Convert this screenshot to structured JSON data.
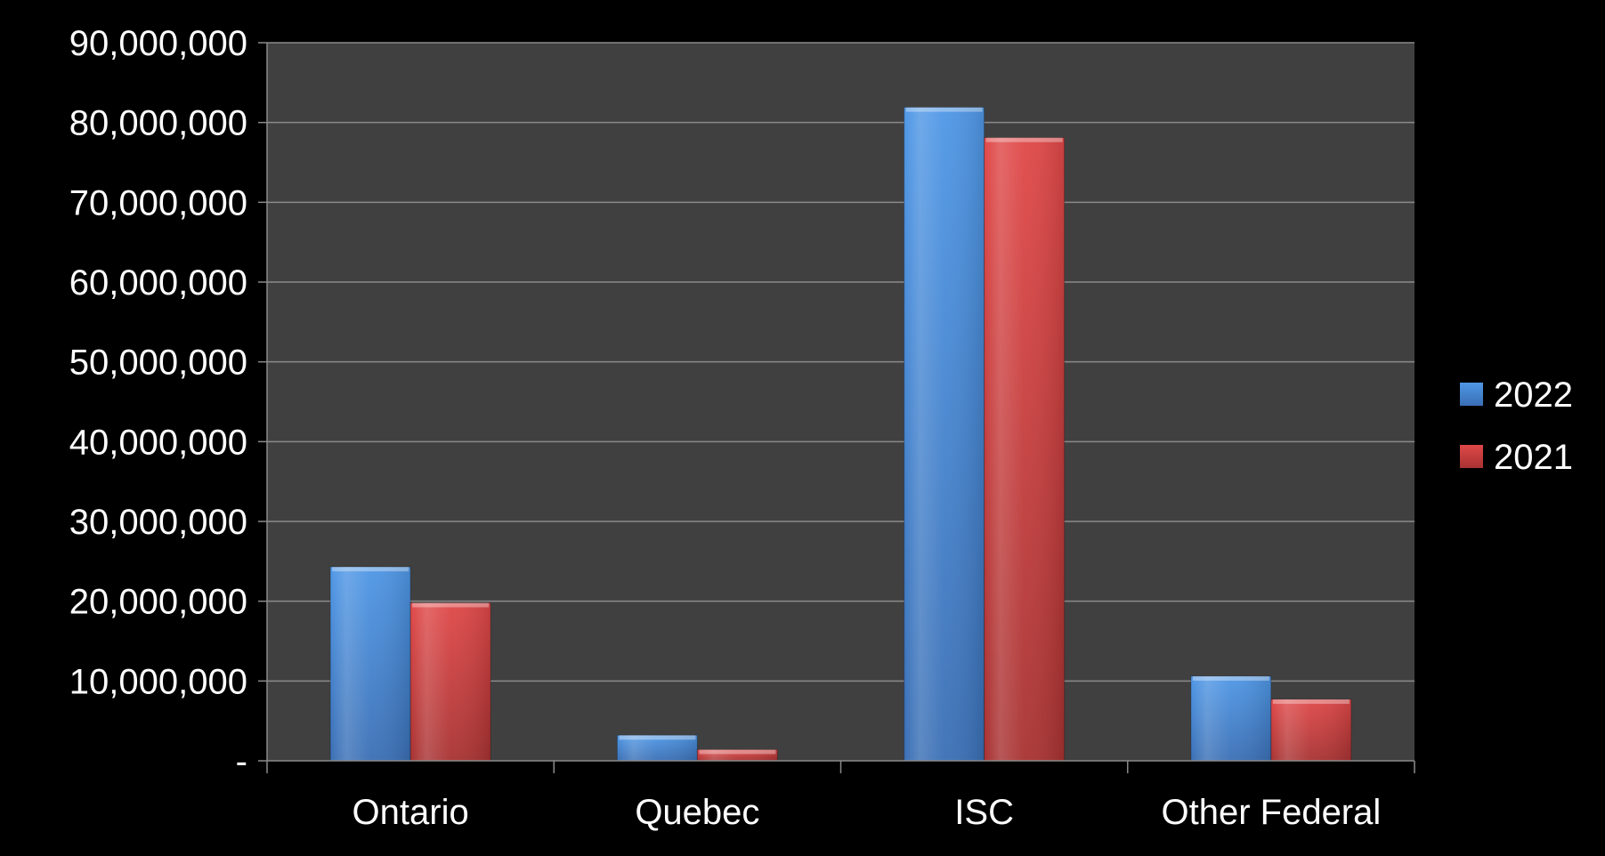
{
  "chart_data": {
    "type": "bar",
    "title": "",
    "xlabel": "",
    "ylabel": "",
    "categories": [
      "Ontario",
      "Quebec",
      "ISC",
      "Other Federal"
    ],
    "series": [
      {
        "name": "2022",
        "values": [
          24300000,
          3200000,
          81900000,
          10600000
        ]
      },
      {
        "name": "2021",
        "values": [
          19800000,
          1400000,
          78100000,
          7700000
        ]
      }
    ],
    "ylim": [
      0,
      90000000
    ],
    "yticks": [
      0,
      10000000,
      20000000,
      30000000,
      40000000,
      50000000,
      60000000,
      70000000,
      80000000,
      90000000
    ],
    "ytick_labels": [
      "-",
      "10,000,000",
      "20,000,000",
      "30,000,000",
      "40,000,000",
      "50,000,000",
      "60,000,000",
      "70,000,000",
      "80,000,000",
      "90,000,000"
    ],
    "grid": true,
    "legend_position": "right",
    "colors": {
      "2022": "#4a8fdc",
      "2021": "#d94444",
      "plot_background": "#404040",
      "page_background": "#000000",
      "gridline": "#8a8a8a",
      "text": "#ffffff"
    }
  }
}
